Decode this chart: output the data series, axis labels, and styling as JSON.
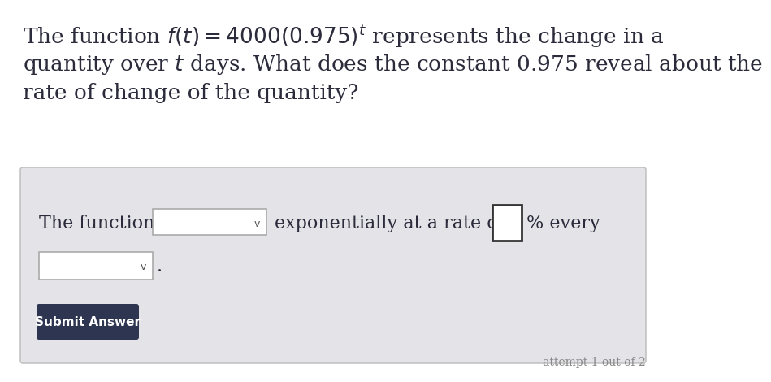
{
  "bg_color": "#ffffff",
  "panel_color": "#e4e4e8",
  "panel_border_color": "#bbbbbb",
  "dark_text_color": "#2b2b3b",
  "answer_text_color": "#2b2b3b",
  "footer_color": "#888888",
  "button_color": "#2d3550",
  "button_text_color": "#ffffff",
  "dropdown_fill": "#ffffff",
  "dropdown_border": "#aaaaaa",
  "input_fill": "#ffffff",
  "input_border": "#333333",
  "q_line1": "The function $\\mathbf{\\mathit{f}}(\\mathbf{\\mathit{t}}) = 4000(0.975)^{\\mathbf{\\mathit{t}}}$ represents the change in a",
  "q_line2": "quantity over $\\mathbf{\\mathit{t}}$ days. What does the constant 0.975 reveal about the",
  "q_line3": "rate of change of the quantity?",
  "ans_prefix": "The function is",
  "ans_middle": "exponentially at a rate of",
  "ans_pct": "% every",
  "ans_period": ".",
  "btn_label": "Submit Answer",
  "footer": "attempt 1 out of 2",
  "q_fontsize": 19,
  "ans_fontsize": 16,
  "btn_fontsize": 11,
  "footer_fontsize": 10,
  "chevron": "v"
}
